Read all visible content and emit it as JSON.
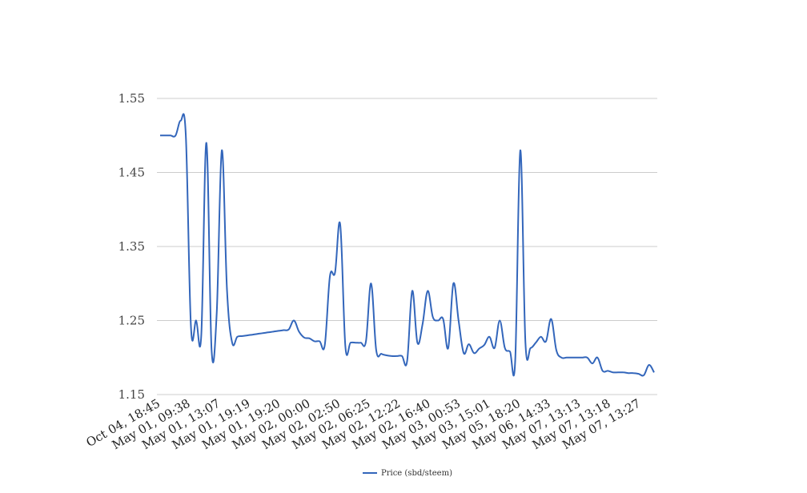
{
  "chart_data": {
    "type": "line",
    "title": "",
    "xlabel": "",
    "ylabel": "",
    "ylim": [
      1.15,
      1.55
    ],
    "yticks": [
      "1.55",
      "1.45",
      "1.35",
      "1.25",
      "1.15"
    ],
    "grid": true,
    "legend_position": "bottom",
    "x_tick_labels": [
      "Oct 04, 18:45",
      "May 01, 09:38",
      "May 01, 13:07",
      "May 01, 19:19",
      "May 01, 19:20",
      "May 02, 00:00",
      "May 02, 02:50",
      "May 02, 06:25",
      "May 02, 12:22",
      "May 02, 16:40",
      "May 03, 00:53",
      "May 03, 15:01",
      "May 05, 18:20",
      "May 06, 14:33",
      "May 07, 13:13",
      "May 07, 13:18",
      "May 07, 13:27"
    ],
    "series": [
      {
        "name": "Price (sbd/steem)",
        "color": "#3366bb",
        "values": [
          1.5,
          1.5,
          1.5,
          1.5,
          1.52,
          1.5,
          1.24,
          1.25,
          1.23,
          1.49,
          1.21,
          1.26,
          1.48,
          1.29,
          1.22,
          1.228,
          1.229,
          1.23,
          1.231,
          1.232,
          1.233,
          1.234,
          1.235,
          1.236,
          1.237,
          1.238,
          1.25,
          1.235,
          1.227,
          1.226,
          1.222,
          1.222,
          1.217,
          1.31,
          1.315,
          1.38,
          1.215,
          1.22,
          1.22,
          1.22,
          1.222,
          1.3,
          1.21,
          1.205,
          1.203,
          1.202,
          1.202,
          1.202,
          1.195,
          1.29,
          1.22,
          1.245,
          1.29,
          1.255,
          1.25,
          1.252,
          1.213,
          1.3,
          1.25,
          1.206,
          1.218,
          1.206,
          1.212,
          1.217,
          1.228,
          1.213,
          1.25,
          1.213,
          1.208,
          1.195,
          1.48,
          1.22,
          1.213,
          1.22,
          1.228,
          1.222,
          1.252,
          1.21,
          1.2,
          1.2,
          1.2,
          1.2,
          1.2,
          1.2,
          1.192,
          1.2,
          1.182,
          1.182,
          1.18,
          1.18,
          1.18,
          1.179,
          1.179,
          1.178,
          1.176,
          1.19,
          1.18
        ]
      }
    ]
  }
}
